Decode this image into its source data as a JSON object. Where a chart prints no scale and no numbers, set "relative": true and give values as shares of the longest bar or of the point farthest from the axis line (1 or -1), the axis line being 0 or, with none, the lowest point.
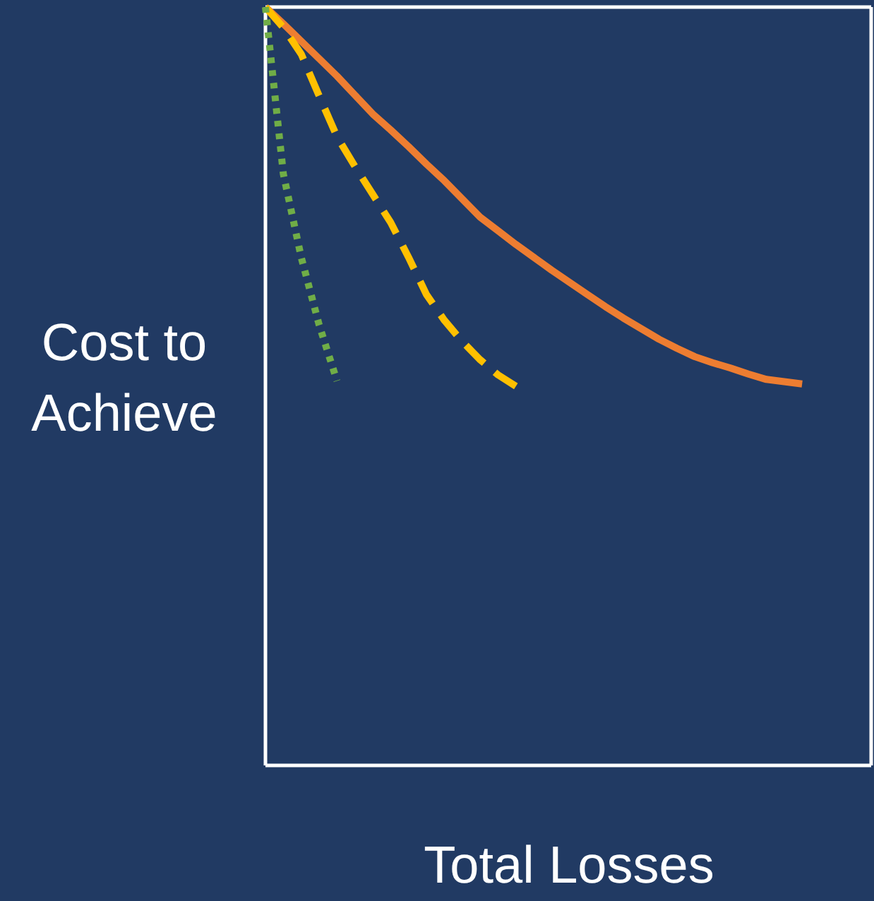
{
  "chart_data": {
    "type": "line",
    "relative": true,
    "xlabel": "Total Losses",
    "ylabel": "Cost to\nAchieve",
    "marker": "none",
    "categories": [
      null,
      null,
      null,
      null,
      null,
      null,
      null,
      null,
      null,
      null,
      null,
      null,
      null,
      null,
      null,
      null,
      null,
      null,
      null,
      null,
      null,
      null,
      null,
      null,
      null,
      null,
      null,
      null,
      null,
      null,
      null
    ],
    "series": [
      {
        "color": "#ed7d31",
        "line_style": "solid",
        "values": [
          1,
          0.978,
          0.955,
          0.932,
          0.909,
          0.884,
          0.859,
          0.838,
          0.816,
          0.793,
          0.771,
          0.747,
          0.723,
          0.705,
          0.687,
          0.67,
          0.653,
          0.637,
          0.621,
          0.605,
          0.59,
          0.576,
          0.562,
          0.55,
          0.539,
          0.531,
          0.524,
          0.516,
          0.509,
          0.506,
          0.503
        ]
      },
      {
        "color": "#ffc000",
        "line_style": "dashed",
        "values": [
          1,
          0.973,
          0.938,
          0.883,
          0.829,
          0.79,
          0.753,
          0.716,
          0.67,
          0.621,
          0.587,
          0.559,
          0.535,
          0.515,
          0.5,
          null,
          null,
          null,
          null,
          null,
          null,
          null,
          null,
          null,
          null,
          null,
          null,
          null,
          null,
          null,
          null
        ]
      },
      {
        "color": "#70ad47",
        "line_style": "dotted",
        "values": [
          1,
          0.78,
          0.67,
          0.581,
          0.507,
          null,
          null,
          null,
          null,
          null,
          null,
          null,
          null,
          null,
          null,
          null,
          null,
          null,
          null,
          null,
          null,
          null,
          null,
          null,
          null,
          null,
          null,
          null,
          null,
          null,
          null
        ]
      }
    ]
  }
}
